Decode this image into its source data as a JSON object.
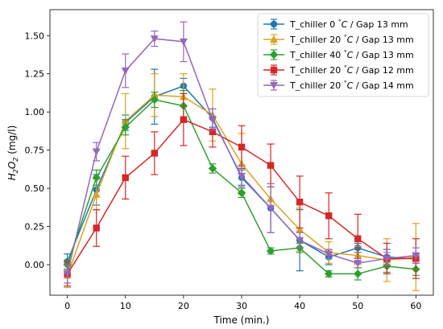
{
  "chart_data": {
    "type": "line",
    "xlabel": "Time (min.)",
    "ylabel": "H2O2 (mg/l)",
    "ylabel_parts": {
      "main": "H",
      "sub1": "2",
      "mid": "O",
      "sub2": "2",
      "unit": " (mg/l)"
    },
    "xlim": [
      -3,
      63
    ],
    "ylim": [
      -0.2,
      1.67
    ],
    "x_ticks": [
      0,
      10,
      20,
      30,
      40,
      50,
      60
    ],
    "y_ticks": [
      0.0,
      0.25,
      0.5,
      0.75,
      1.0,
      1.25,
      1.5
    ],
    "y_tick_labels": [
      "0.00",
      "0.25",
      "0.50",
      "0.75",
      "1.00",
      "1.25",
      "1.50"
    ],
    "legend_position": "top-right",
    "x": [
      0,
      5,
      10,
      15,
      20,
      25,
      30,
      35,
      40,
      45,
      50,
      55,
      60
    ],
    "series": [
      {
        "name": "T_chiller 0 °C / Gap 13 mm",
        "name_parts": [
          "T_chiller 0 ",
          "°",
          "C",
          " / Gap 13 mm"
        ],
        "color": "#1f77b4",
        "marker": "circle",
        "values": [
          0.02,
          0.49,
          0.93,
          1.1,
          1.17,
          0.96,
          0.57,
          0.37,
          0.16,
          0.05,
          0.11,
          0.05,
          0.04
        ],
        "errors": [
          0.05,
          0.1,
          0.05,
          0.18,
          0.05,
          0.06,
          0.05,
          0.16,
          0.2,
          0.05,
          0.03,
          0.05,
          0.03
        ]
      },
      {
        "name": "T_chiller 20 °C / Gap 13 mm",
        "name_parts": [
          "T_chiller 20 ",
          "°",
          "C",
          " / Gap 13 mm"
        ],
        "color": "#dba220",
        "marker": "triangle-up",
        "values": [
          -0.07,
          0.46,
          0.94,
          1.11,
          1.1,
          0.98,
          0.66,
          0.43,
          0.23,
          0.08,
          0.06,
          0.03,
          0.05
        ],
        "errors": [
          0.08,
          0.1,
          0.18,
          0.14,
          0.15,
          0.17,
          0.2,
          0.22,
          0.14,
          0.07,
          0.06,
          0.14,
          0.22
        ]
      },
      {
        "name": "T_chiller 40 °C / Gap 13 mm",
        "name_parts": [
          "T_chiller 40 ",
          "°",
          "C",
          " / Gap 13 mm"
        ],
        "color": "#2ca02c",
        "marker": "diamond",
        "values": [
          0.0,
          0.57,
          0.9,
          1.08,
          1.04,
          0.63,
          0.47,
          0.09,
          0.11,
          -0.06,
          -0.06,
          -0.01,
          -0.03
        ],
        "errors": [
          0.03,
          0.05,
          0.05,
          0.05,
          0.1,
          0.03,
          0.03,
          0.02,
          0.03,
          0.02,
          0.04,
          0.04,
          0.04
        ]
      },
      {
        "name": "T_chiller 20 °C / Gap 12 mm",
        "name_parts": [
          "T_chiller 20 ",
          "°",
          "C",
          " / Gap 12 mm"
        ],
        "color": "#d62728",
        "marker": "square",
        "values": [
          -0.06,
          0.24,
          0.57,
          0.73,
          0.95,
          0.87,
          0.77,
          0.65,
          0.41,
          0.32,
          0.17,
          0.04,
          0.04
        ],
        "errors": [
          0.08,
          0.12,
          0.14,
          0.14,
          0.17,
          0.1,
          0.14,
          0.14,
          0.17,
          0.15,
          0.16,
          0.1,
          0.13
        ]
      },
      {
        "name": "T_chiller 20 °C / Gap 14 mm",
        "name_parts": [
          "T_chiller 20 ",
          "°",
          "C",
          " / Gap 14 mm"
        ],
        "color": "#9467bd",
        "marker": "triangle-down",
        "values": [
          -0.06,
          0.74,
          1.27,
          1.48,
          1.46,
          0.95,
          0.58,
          0.37,
          0.16,
          0.07,
          0.01,
          0.04,
          0.06
        ],
        "errors": [
          0.06,
          0.06,
          0.11,
          0.05,
          0.13,
          0.07,
          0.07,
          0.16,
          0.05,
          0.03,
          0.03,
          0.04,
          0.05
        ]
      }
    ]
  }
}
